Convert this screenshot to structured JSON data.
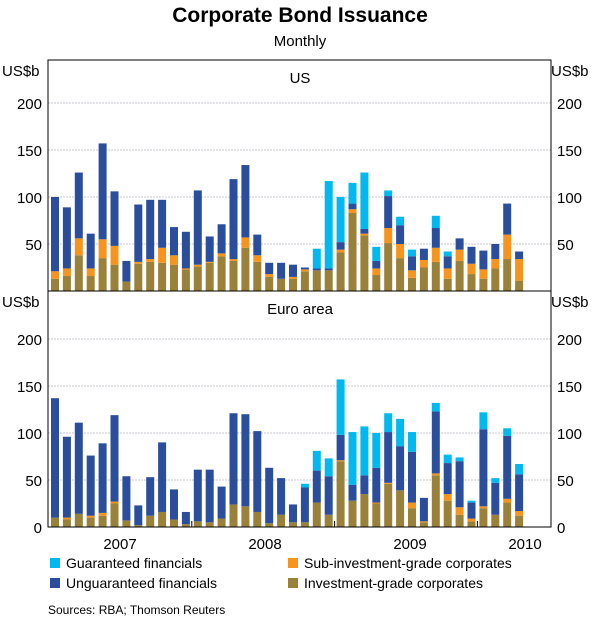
{
  "chart_data": {
    "type": "bar",
    "stacked": true,
    "title": "Corporate Bond Issuance",
    "subtitle": "Monthly",
    "unit_label": "US$b",
    "x_tick_labels": [
      "2007",
      "2008",
      "2009",
      "2010"
    ],
    "x_range": [
      "2007-01",
      "2010-04"
    ],
    "ylim": [
      0,
      250
    ],
    "y_ticks": [
      0,
      50,
      100,
      150,
      200
    ],
    "grid": true,
    "legend_placement": "bottom",
    "series_meta": [
      {
        "key": "ig",
        "name": "Investment-grade corporates",
        "color": "#9A8139"
      },
      {
        "key": "sub",
        "name": "Sub-investment-grade corporates",
        "color": "#F7941D"
      },
      {
        "key": "ung",
        "name": "Unguaranteed financials",
        "color": "#2B4E9C"
      },
      {
        "key": "guar",
        "name": "Guaranteed financials",
        "color": "#00B9F0"
      }
    ],
    "panels": [
      {
        "name": "US",
        "series": {
          "ig": [
            13,
            16,
            38,
            16,
            35,
            28,
            10,
            29,
            31,
            30,
            28,
            23,
            26,
            30,
            37,
            32,
            46,
            31,
            15,
            13,
            13,
            21,
            22,
            22,
            41,
            83,
            59,
            17,
            51,
            35,
            14,
            25,
            31,
            13,
            32,
            18,
            13,
            24,
            34,
            11
          ],
          "sub": [
            8,
            8,
            18,
            8,
            20,
            20,
            0,
            2,
            3,
            16,
            10,
            1,
            2,
            1,
            3,
            2,
            11,
            7,
            3,
            0,
            2,
            2,
            0,
            0,
            3,
            4,
            2,
            7,
            16,
            15,
            8,
            8,
            15,
            11,
            12,
            11,
            10,
            10,
            26,
            23
          ],
          "ung": [
            79,
            65,
            70,
            37,
            102,
            58,
            22,
            61,
            63,
            51,
            30,
            39,
            79,
            27,
            31,
            85,
            77,
            22,
            12,
            17,
            13,
            2,
            2,
            2,
            8,
            6,
            5,
            8,
            34,
            20,
            15,
            12,
            21,
            13,
            12,
            18,
            20,
            16,
            33,
            8
          ],
          "guar": [
            0,
            0,
            0,
            0,
            0,
            0,
            0,
            0,
            0,
            0,
            0,
            0,
            0,
            0,
            0,
            0,
            0,
            0,
            0,
            0,
            0,
            0,
            21,
            93,
            48,
            22,
            60,
            15,
            6,
            9,
            7,
            0,
            13,
            5,
            0,
            0,
            0,
            0,
            0,
            0
          ]
        }
      },
      {
        "name": "Euro area",
        "series": {
          "ig": [
            10,
            8,
            14,
            10,
            12,
            25,
            7,
            2,
            12,
            16,
            8,
            3,
            6,
            5,
            9,
            24,
            22,
            16,
            4,
            13,
            5,
            5,
            26,
            13,
            70,
            28,
            35,
            25,
            46,
            39,
            20,
            5,
            55,
            28,
            13,
            6,
            20,
            13,
            26,
            12
          ],
          "sub": [
            0,
            2,
            0,
            2,
            3,
            2,
            0,
            0,
            0,
            0,
            0,
            0,
            0,
            0,
            0,
            0,
            0,
            0,
            0,
            0,
            0,
            0,
            0,
            0,
            1,
            0,
            0,
            1,
            1,
            0,
            6,
            1,
            2,
            7,
            8,
            3,
            2,
            0,
            4,
            5
          ],
          "ung": [
            127,
            86,
            97,
            64,
            74,
            92,
            47,
            21,
            41,
            74,
            32,
            13,
            55,
            56,
            34,
            97,
            98,
            86,
            59,
            39,
            19,
            37,
            34,
            41,
            27,
            17,
            20,
            37,
            54,
            47,
            54,
            25,
            66,
            33,
            49,
            17,
            82,
            34,
            67,
            39
          ],
          "guar": [
            0,
            0,
            0,
            0,
            0,
            0,
            0,
            0,
            0,
            0,
            0,
            0,
            0,
            0,
            0,
            0,
            0,
            0,
            0,
            0,
            0,
            4,
            21,
            19,
            59,
            56,
            52,
            37,
            20,
            29,
            21,
            0,
            9,
            9,
            4,
            2,
            18,
            5,
            8,
            11
          ]
        }
      }
    ]
  },
  "sources": "Sources: RBA; Thomson Reuters"
}
